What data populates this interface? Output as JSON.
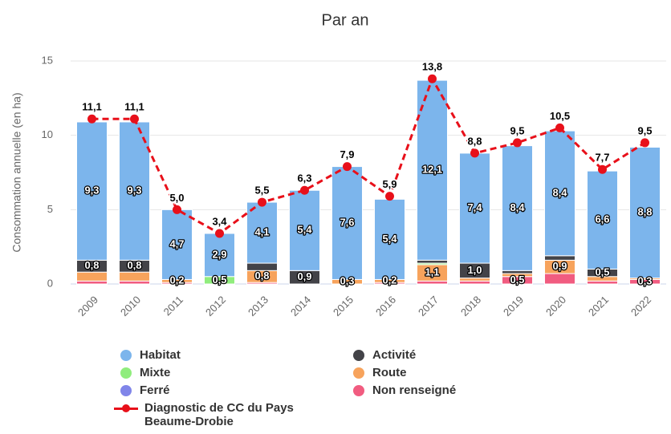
{
  "chart_data": {
    "type": "bar",
    "stacked": true,
    "title": "Par an",
    "y_label": "Consommation annuelle (en ha)",
    "categories": [
      "2009",
      "2010",
      "2011",
      "2012",
      "2013",
      "2014",
      "2015",
      "2016",
      "2017",
      "2018",
      "2019",
      "2020",
      "2021",
      "2022"
    ],
    "ylim": [
      0,
      15
    ],
    "yticks": [
      0,
      5,
      10,
      15
    ],
    "grid": true,
    "series": [
      {
        "name": "Non renseigné",
        "color": "#f15c80",
        "values": [
          0.2,
          0.2,
          0.1,
          0,
          0.1,
          0,
          0,
          0.1,
          0.2,
          0.2,
          0.5,
          0.7,
          0.2,
          0.3
        ],
        "value_labels": [
          null,
          null,
          null,
          null,
          null,
          null,
          null,
          null,
          null,
          null,
          "0,5",
          null,
          null,
          "0,3"
        ]
      },
      {
        "name": "Route",
        "color": "#f7a35c",
        "values": [
          0.6,
          0.6,
          0.2,
          0,
          0.8,
          0,
          0.3,
          0.2,
          1.1,
          0.2,
          0.2,
          0.9,
          0.3,
          0.1
        ],
        "value_labels": [
          null,
          null,
          "0,2",
          null,
          "0,8",
          null,
          "0,3",
          "0,2",
          "1,1",
          null,
          null,
          "0,9",
          null,
          null
        ]
      },
      {
        "name": "Ferré",
        "color": "#8085e9",
        "values": [
          0,
          0,
          0,
          0,
          0,
          0,
          0,
          0,
          0,
          0,
          0,
          0,
          0,
          0
        ]
      },
      {
        "name": "Mixte",
        "color": "#90ed7d",
        "values": [
          0,
          0,
          0,
          0.5,
          0,
          0,
          0,
          0,
          0.1,
          0,
          0,
          0,
          0,
          0
        ],
        "value_labels": [
          null,
          null,
          null,
          "0,5",
          null,
          null,
          null,
          null,
          null,
          null,
          null,
          null,
          null,
          null
        ]
      },
      {
        "name": "Activité",
        "color": "#434348",
        "values": [
          0.8,
          0.8,
          0,
          0,
          0.5,
          0.9,
          0,
          0,
          0.2,
          1.0,
          0.2,
          0.3,
          0.5,
          0
        ],
        "value_labels": [
          "0,8",
          "0,8",
          null,
          null,
          null,
          "0,9",
          null,
          null,
          null,
          "1,0",
          null,
          null,
          "0,5",
          null
        ]
      },
      {
        "name": "Habitat",
        "color": "#7cb5ec",
        "values": [
          9.3,
          9.3,
          4.7,
          2.9,
          4.1,
          5.4,
          7.6,
          5.4,
          12.1,
          7.4,
          8.4,
          8.4,
          6.6,
          8.8
        ],
        "value_labels": [
          "9,3",
          "9,3",
          "4,7",
          "2,9",
          "4,1",
          "5,4",
          "7,6",
          "5,4",
          "12,1",
          "7,4",
          "8,4",
          "8,4",
          "6,6",
          "8,8"
        ]
      },
      {
        "name": "Diagnostic de CC du Pays Beaume-Drobie",
        "type": "line",
        "color": "#e8101a",
        "values": [
          11.1,
          11.1,
          5.0,
          3.4,
          5.5,
          6.3,
          7.9,
          5.9,
          13.8,
          8.8,
          9.5,
          10.5,
          7.7,
          9.5
        ],
        "value_labels": [
          "11,1",
          "11,1",
          "5,0",
          "3,4",
          "5,5",
          "6,3",
          "7,9",
          "5,9",
          "13,8",
          "8,8",
          "9,5",
          "10,5",
          "7,7",
          "9,5"
        ]
      }
    ]
  }
}
